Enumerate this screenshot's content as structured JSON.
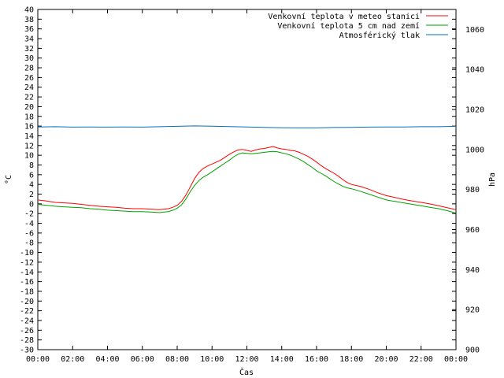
{
  "chart_data": {
    "type": "line",
    "xlabel": "Čas",
    "ylabel": "°C",
    "y2label": "hPa",
    "ylim": [
      -30,
      40
    ],
    "ytick_step": 2,
    "y2lim": [
      900,
      1070
    ],
    "y2ticks": [
      900,
      920,
      940,
      960,
      980,
      1000,
      1020,
      1040,
      1060
    ],
    "xlim": [
      0,
      24
    ],
    "xticks": [
      "00:00",
      "02:00",
      "04:00",
      "06:00",
      "08:00",
      "10:00",
      "12:00",
      "14:00",
      "16:00",
      "18:00",
      "20:00",
      "22:00",
      "00:00"
    ],
    "grid": false,
    "legend_position": "top-right",
    "series": [
      {
        "name": "Venkovní teplota v meteo stanici",
        "color": "#ff0000",
        "axis": "left",
        "x": [
          0,
          0.5,
          1,
          1.5,
          2,
          2.5,
          3,
          3.5,
          4,
          4.5,
          5,
          5.5,
          6,
          6.5,
          7,
          7.25,
          7.5,
          7.75,
          8,
          8.25,
          8.5,
          8.75,
          9,
          9.25,
          9.5,
          9.75,
          10,
          10.25,
          10.5,
          10.75,
          11,
          11.25,
          11.5,
          11.75,
          12,
          12.25,
          12.5,
          12.75,
          13,
          13.25,
          13.5,
          13.75,
          14,
          14.25,
          14.5,
          14.75,
          15,
          15.25,
          15.5,
          15.75,
          16,
          16.25,
          16.5,
          16.75,
          17,
          17.25,
          17.5,
          17.75,
          18,
          18.5,
          19,
          19.5,
          20,
          20.5,
          21,
          21.5,
          22,
          22.5,
          23,
          23.5,
          24
        ],
        "y": [
          0.8,
          0.6,
          0.3,
          0.2,
          0.1,
          -0.1,
          -0.3,
          -0.5,
          -0.6,
          -0.7,
          -0.9,
          -1.0,
          -1.0,
          -1.1,
          -1.2,
          -1.1,
          -1.0,
          -0.7,
          -0.3,
          0.5,
          1.8,
          3.5,
          5.2,
          6.5,
          7.3,
          7.8,
          8.2,
          8.6,
          9.0,
          9.6,
          10.2,
          10.7,
          11.1,
          11.2,
          11.0,
          10.8,
          11.1,
          11.3,
          11.4,
          11.6,
          11.8,
          11.5,
          11.3,
          11.2,
          11.0,
          10.9,
          10.6,
          10.2,
          9.8,
          9.2,
          8.6,
          7.9,
          7.3,
          6.8,
          6.3,
          5.7,
          5.0,
          4.4,
          4.0,
          3.6,
          3.0,
          2.3,
          1.7,
          1.3,
          0.9,
          0.6,
          0.3,
          0.0,
          -0.4,
          -0.8,
          -1.2
        ]
      },
      {
        "name": "Venkovní teplota 5 cm nad zemí",
        "color": "#00a000",
        "axis": "left",
        "x": [
          0,
          0.5,
          1,
          1.5,
          2,
          2.5,
          3,
          3.5,
          4,
          4.5,
          5,
          5.5,
          6,
          6.5,
          7,
          7.25,
          7.5,
          7.75,
          8,
          8.25,
          8.5,
          8.75,
          9,
          9.25,
          9.5,
          9.75,
          10,
          10.25,
          10.5,
          10.75,
          11,
          11.25,
          11.5,
          11.75,
          12,
          12.25,
          12.5,
          12.75,
          13,
          13.25,
          13.5,
          13.75,
          14,
          14.25,
          14.5,
          14.75,
          15,
          15.25,
          15.5,
          15.75,
          16,
          16.25,
          16.5,
          16.75,
          17,
          17.25,
          17.5,
          17.75,
          18,
          18.5,
          19,
          19.5,
          20,
          20.5,
          21,
          21.5,
          22,
          22.5,
          23,
          23.5,
          24
        ],
        "y": [
          -0.1,
          -0.3,
          -0.5,
          -0.6,
          -0.7,
          -0.8,
          -1.0,
          -1.1,
          -1.3,
          -1.4,
          -1.5,
          -1.6,
          -1.6,
          -1.7,
          -1.8,
          -1.7,
          -1.6,
          -1.3,
          -0.9,
          -0.2,
          1.0,
          2.5,
          3.8,
          4.8,
          5.5,
          6.0,
          6.6,
          7.2,
          7.8,
          8.4,
          9.0,
          9.7,
          10.2,
          10.5,
          10.4,
          10.3,
          10.4,
          10.5,
          10.6,
          10.7,
          10.8,
          10.7,
          10.5,
          10.3,
          10.0,
          9.6,
          9.2,
          8.7,
          8.1,
          7.5,
          6.8,
          6.3,
          5.8,
          5.2,
          4.6,
          4.1,
          3.6,
          3.3,
          3.1,
          2.6,
          2.0,
          1.4,
          0.8,
          0.5,
          0.2,
          -0.1,
          -0.4,
          -0.7,
          -1.0,
          -1.4,
          -1.9
        ]
      },
      {
        "name": "Atmosférický tlak",
        "color": "#0070c0",
        "axis": "right",
        "x": [
          0,
          1,
          2,
          3,
          4,
          5,
          6,
          7,
          8,
          9,
          10,
          11,
          12,
          13,
          14,
          15,
          16,
          17,
          18,
          19,
          20,
          21,
          22,
          23,
          24
        ],
        "y": [
          1011.3,
          1011.4,
          1011.2,
          1011.3,
          1011.2,
          1011.3,
          1011.2,
          1011.4,
          1011.6,
          1011.8,
          1011.7,
          1011.5,
          1011.3,
          1011.1,
          1010.9,
          1010.8,
          1010.8,
          1011.0,
          1011.1,
          1011.2,
          1011.3,
          1011.3,
          1011.4,
          1011.4,
          1011.6
        ]
      }
    ]
  }
}
